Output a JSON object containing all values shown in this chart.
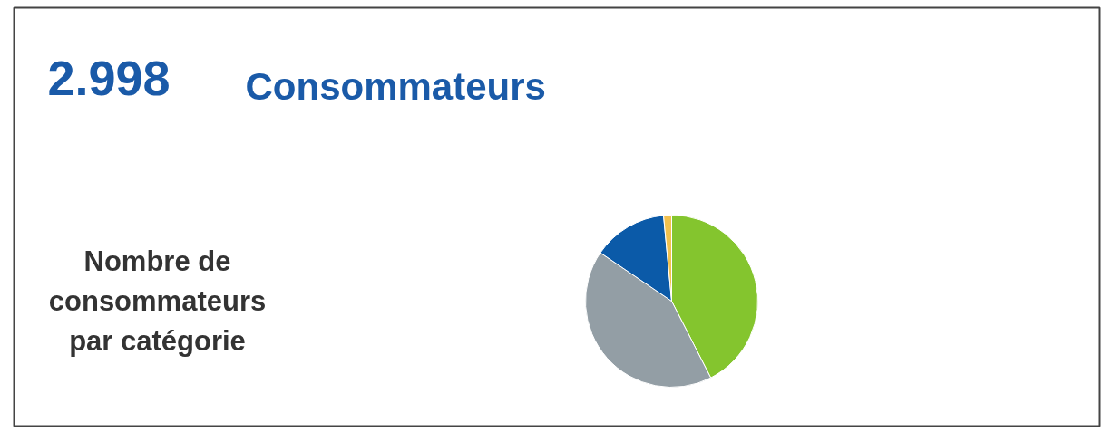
{
  "chart_data": {
    "type": "pie",
    "title": "2.998",
    "subtitle": "Consommateurs",
    "annotations": [
      "Nombre de\nconsommateurs\npar catégorie"
    ],
    "categories": [
      null,
      null,
      null,
      null
    ],
    "values": [
      42.5,
      42.0,
      14.0,
      1.5
    ],
    "colors": [
      "#84c52e",
      "#939ea5",
      "#0b5aa8",
      "#f2c14e"
    ]
  }
}
